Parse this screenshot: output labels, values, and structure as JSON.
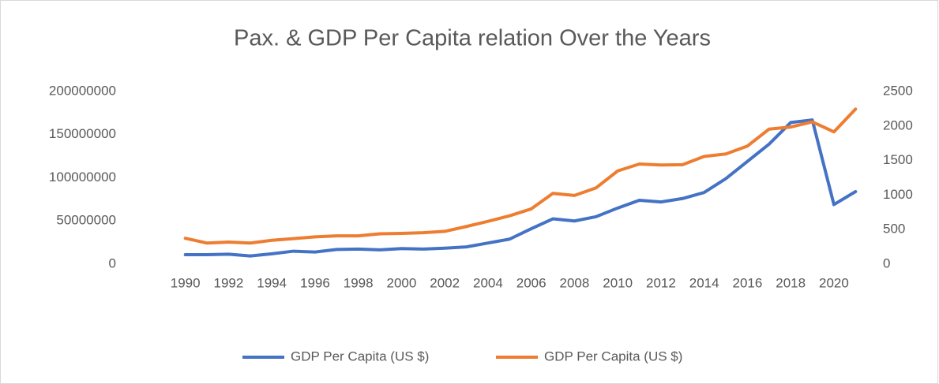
{
  "chart_data": {
    "type": "line",
    "title": "Pax. & GDP Per Capita relation Over the Years",
    "categories": [
      "1990",
      null,
      "1992",
      null,
      "1994",
      null,
      "1996",
      null,
      "1998",
      null,
      "2000",
      null,
      "2002",
      null,
      "2004",
      null,
      "2006",
      null,
      "2008",
      null,
      "2010",
      null,
      "2012",
      null,
      "2014",
      null,
      "2016",
      null,
      "2018",
      null,
      "2020",
      null
    ],
    "series": [
      {
        "name": "GDP Per Capita (US $)",
        "color": "#4472c4",
        "axis": "y",
        "values": [
          11000000,
          11000000,
          11500000,
          9500000,
          12000000,
          15000000,
          14000000,
          17000000,
          17500000,
          16500000,
          18000000,
          17500000,
          18500000,
          20000000,
          24500000,
          29000000,
          41000000,
          52500000,
          50000000,
          55000000,
          65000000,
          74000000,
          72000000,
          76000000,
          83000000,
          99000000,
          119000000,
          139000000,
          164000000,
          167000000,
          69000000,
          84000000
        ]
      },
      {
        "name": "GDP Per Capita (US $)",
        "color": "#ed7d31",
        "axis": "y2",
        "values": [
          375,
          305,
          320,
          305,
          345,
          370,
          395,
          410,
          410,
          440,
          445,
          455,
          475,
          545,
          620,
          700,
          800,
          1025,
          995,
          1105,
          1350,
          1450,
          1435,
          1440,
          1560,
          1595,
          1710,
          1955,
          1985,
          2060,
          1915,
          2245
        ]
      }
    ],
    "ylim": [
      0,
      200000000
    ],
    "yticks": [
      0,
      50000000,
      100000000,
      150000000,
      200000000
    ],
    "y2lim": [
      0,
      2500
    ],
    "y2ticks": [
      0,
      500,
      1000,
      1500,
      2000,
      2500
    ],
    "grid": false,
    "legend": "bottom"
  }
}
